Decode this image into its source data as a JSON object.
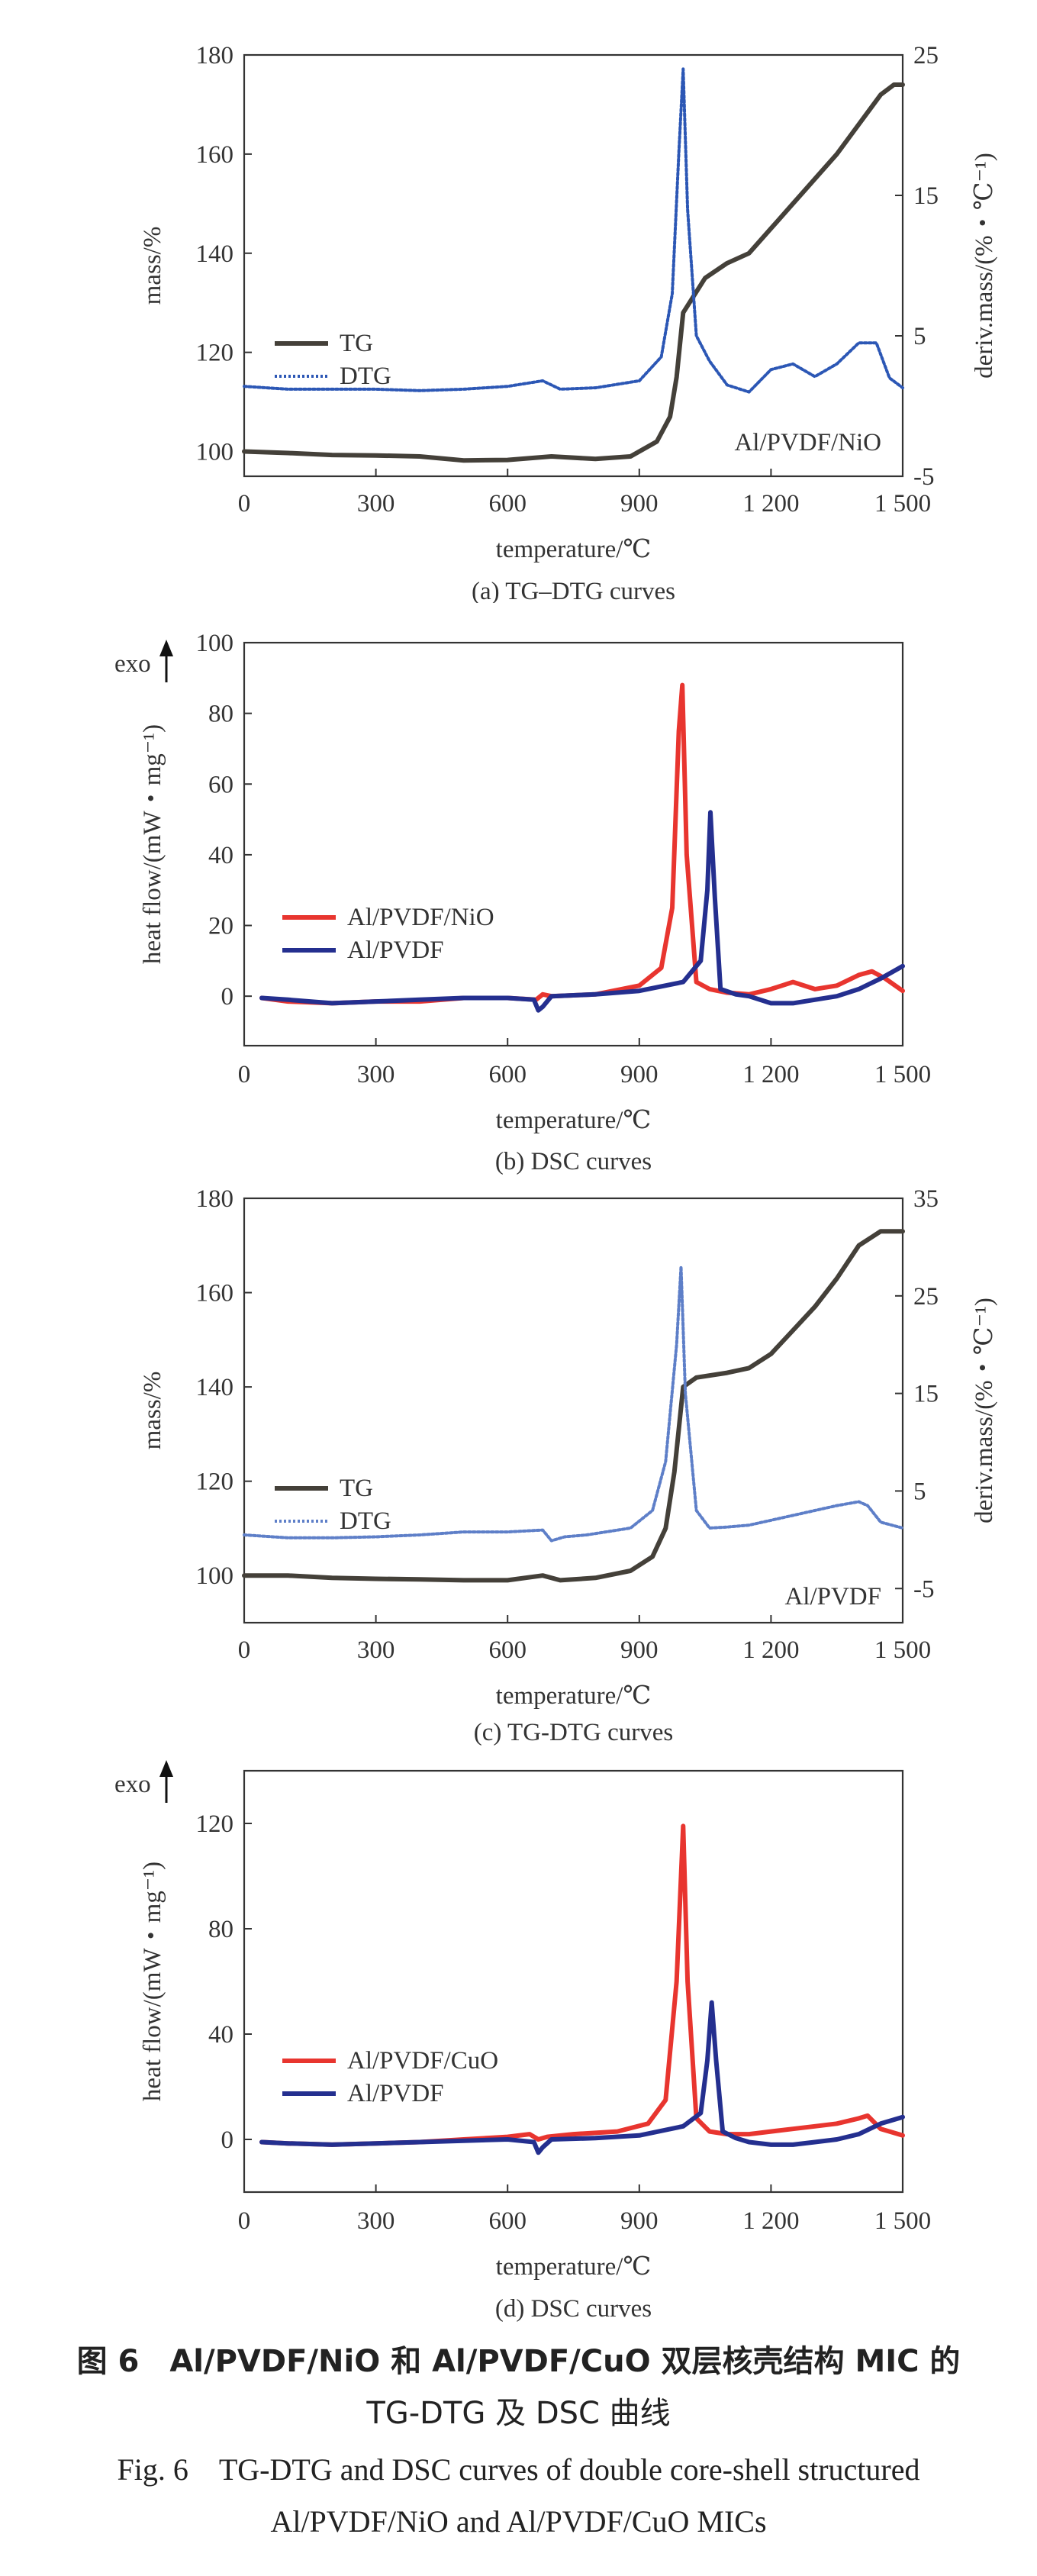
{
  "chart_data": [
    {
      "id": "a",
      "type": "line",
      "subcaption": "(a) TG–DTG curves",
      "xlabel": "temperature/℃",
      "ylabel": "mass/%",
      "y2label": "deriv.mass/(%・℃⁻¹)",
      "xlim": [
        0,
        1500
      ],
      "ylim": [
        95,
        180
      ],
      "y2lim": [
        -5,
        25
      ],
      "xticks": [
        0,
        300,
        600,
        900,
        1200,
        1500
      ],
      "xticklabels": [
        "0",
        "300",
        "600",
        "900",
        "1 200",
        "1 500"
      ],
      "yticks": [
        100,
        120,
        140,
        160,
        180
      ],
      "y2ticks": [
        -5,
        5,
        15,
        25
      ],
      "annotation": "Al/PVDF/NiO",
      "legend_position": "left",
      "series": [
        {
          "name": "TG",
          "axis": "left",
          "color": "#444039",
          "style": "solid",
          "x": [
            0,
            100,
            200,
            300,
            400,
            500,
            600,
            700,
            800,
            880,
            940,
            970,
            985,
            1000,
            1050,
            1100,
            1150,
            1200,
            1250,
            1300,
            1350,
            1400,
            1450,
            1480,
            1500
          ],
          "y": [
            100,
            99.7,
            99.3,
            99.2,
            99,
            98.2,
            98.3,
            99,
            98.5,
            99,
            102,
            107,
            115,
            128,
            135,
            138,
            140,
            145,
            150,
            155,
            160,
            166,
            172,
            174,
            174
          ]
        },
        {
          "name": "DTG",
          "axis": "right",
          "color": "#2c57b5",
          "style": "dotted",
          "x": [
            0,
            100,
            200,
            300,
            400,
            500,
            600,
            680,
            720,
            800,
            900,
            950,
            975,
            990,
            1000,
            1010,
            1030,
            1060,
            1100,
            1150,
            1200,
            1250,
            1300,
            1350,
            1400,
            1440,
            1470,
            1500
          ],
          "y": [
            1.4,
            1.2,
            1.2,
            1.2,
            1.1,
            1.2,
            1.4,
            1.8,
            1.2,
            1.3,
            1.8,
            3.5,
            8,
            18,
            24,
            14,
            5,
            3.2,
            1.5,
            1.0,
            2.6,
            3.0,
            2.1,
            3.0,
            4.5,
            4.5,
            2.0,
            1.3
          ]
        }
      ]
    },
    {
      "id": "b",
      "type": "line",
      "subcaption": "(b) DSC curves",
      "xlabel": "temperature/℃",
      "ylabel": "heat flow/(mW・mg⁻¹)",
      "exo_label": "exo",
      "xlim": [
        0,
        1500
      ],
      "ylim": [
        -14,
        100
      ],
      "xticks": [
        0,
        300,
        600,
        900,
        1200,
        1500
      ],
      "xticklabels": [
        "0",
        "300",
        "600",
        "900",
        "1 200",
        "1 500"
      ],
      "yticks": [
        0,
        20,
        40,
        60,
        80,
        100
      ],
      "legend_position": "left",
      "series": [
        {
          "name": "Al/PVDF/NiO",
          "color": "#e8352f",
          "style": "solid",
          "x": [
            40,
            100,
            200,
            300,
            400,
            500,
            600,
            665,
            680,
            700,
            800,
            900,
            950,
            975,
            990,
            998,
            1008,
            1030,
            1060,
            1100,
            1150,
            1200,
            1250,
            1300,
            1350,
            1400,
            1430,
            1460,
            1500
          ],
          "y": [
            -0.5,
            -1.5,
            -2,
            -1.5,
            -1.5,
            -0.5,
            -0.5,
            -1,
            0.5,
            0,
            0.5,
            3,
            8,
            25,
            75,
            88,
            40,
            4,
            2,
            1,
            0.5,
            2,
            4,
            2,
            3,
            6,
            7,
            5,
            1.5
          ]
        },
        {
          "name": "Al/PVDF",
          "color": "#242f8f",
          "style": "solid",
          "x": [
            40,
            100,
            200,
            300,
            400,
            500,
            600,
            660,
            670,
            680,
            700,
            800,
            900,
            1000,
            1040,
            1055,
            1062,
            1072,
            1085,
            1120,
            1150,
            1200,
            1250,
            1300,
            1350,
            1400,
            1450,
            1500
          ],
          "y": [
            -0.5,
            -1,
            -2,
            -1.5,
            -1,
            -0.5,
            -0.5,
            -1,
            -4,
            -3,
            0,
            0.5,
            1.5,
            4,
            10,
            30,
            52,
            28,
            2,
            0.5,
            0,
            -2,
            -2,
            -1,
            0,
            2,
            5,
            8.5
          ]
        }
      ]
    },
    {
      "id": "c",
      "type": "line",
      "subcaption": "(c) TG-DTG curves",
      "xlabel": "temperature/℃",
      "ylabel": "mass/%",
      "y2label": "deriv.mass/(%・℃⁻¹)",
      "xlim": [
        0,
        1500
      ],
      "ylim": [
        90,
        180
      ],
      "y2lim": [
        -8.5,
        35
      ],
      "xticks": [
        0,
        300,
        600,
        900,
        1200,
        1500
      ],
      "xticklabels": [
        "0",
        "300",
        "600",
        "900",
        "1 200",
        "1 500"
      ],
      "yticks": [
        100,
        120,
        140,
        160,
        180
      ],
      "y2ticks": [
        -5,
        5,
        15,
        25,
        35
      ],
      "annotation": "Al/PVDF",
      "legend_position": "left",
      "series": [
        {
          "name": "TG",
          "axis": "left",
          "color": "#444039",
          "style": "solid",
          "x": [
            0,
            100,
            200,
            300,
            400,
            500,
            600,
            680,
            720,
            800,
            880,
            930,
            960,
            980,
            1000,
            1030,
            1100,
            1150,
            1200,
            1250,
            1300,
            1350,
            1400,
            1450,
            1480,
            1500
          ],
          "y": [
            100,
            100,
            99.5,
            99.3,
            99.2,
            99,
            99,
            100,
            99,
            99.5,
            101,
            104,
            110,
            122,
            140,
            142,
            143,
            144,
            147,
            152,
            157,
            163,
            170,
            173,
            173,
            173
          ]
        },
        {
          "name": "DTG",
          "axis": "right",
          "color": "#5e7fc8",
          "style": "dotted",
          "x": [
            0,
            100,
            200,
            300,
            400,
            500,
            600,
            680,
            700,
            730,
            780,
            880,
            930,
            960,
            985,
            995,
            1005,
            1030,
            1060,
            1100,
            1150,
            1200,
            1250,
            1300,
            1350,
            1400,
            1420,
            1450,
            1500
          ],
          "y": [
            0.5,
            0.2,
            0.2,
            0.3,
            0.5,
            0.8,
            0.8,
            1.0,
            -0.1,
            0.3,
            0.5,
            1.2,
            3,
            8,
            20,
            28,
            15,
            3,
            1.2,
            1.3,
            1.5,
            2.0,
            2.5,
            3.0,
            3.5,
            3.9,
            3.5,
            1.8,
            1.2
          ]
        }
      ]
    },
    {
      "id": "d",
      "type": "line",
      "subcaption": "(d) DSC curves",
      "xlabel": "temperature/℃",
      "ylabel": "heat flow/(mW・mg⁻¹)",
      "exo_label": "exo",
      "xlim": [
        0,
        1500
      ],
      "ylim": [
        -20,
        140
      ],
      "xticks": [
        0,
        300,
        600,
        900,
        1200,
        1500
      ],
      "xticklabels": [
        "0",
        "300",
        "600",
        "900",
        "1 200",
        "1 500"
      ],
      "yticks": [
        0,
        40,
        80,
        120
      ],
      "legend_position": "left",
      "series": [
        {
          "name": "Al/PVDF/CuO",
          "color": "#e8352f",
          "style": "solid",
          "x": [
            40,
            100,
            200,
            300,
            400,
            500,
            600,
            650,
            670,
            690,
            750,
            850,
            920,
            960,
            985,
            1000,
            1010,
            1030,
            1060,
            1100,
            1150,
            1200,
            1250,
            1300,
            1350,
            1400,
            1420,
            1450,
            1500
          ],
          "y": [
            -1,
            -1.5,
            -2,
            -1.5,
            -1,
            0,
            1,
            2,
            0,
            1,
            2,
            3,
            6,
            15,
            60,
            119,
            60,
            8,
            3,
            2,
            2,
            3,
            4,
            5,
            6,
            8,
            9,
            4,
            1.5
          ]
        },
        {
          "name": "Al/PVDF",
          "color": "#242f8f",
          "style": "solid",
          "x": [
            40,
            100,
            200,
            300,
            400,
            500,
            600,
            660,
            670,
            680,
            700,
            800,
            900,
            1000,
            1040,
            1055,
            1065,
            1075,
            1090,
            1120,
            1150,
            1200,
            1250,
            1300,
            1350,
            1400,
            1450,
            1500
          ],
          "y": [
            -1,
            -1.5,
            -2,
            -1.5,
            -1,
            -0.5,
            0,
            -1,
            -5,
            -3,
            0,
            0.5,
            1.5,
            5,
            10,
            30,
            52,
            30,
            3,
            0.5,
            -1,
            -2,
            -2,
            -1,
            0,
            2,
            6,
            8.5
          ]
        }
      ]
    }
  ],
  "caption": {
    "zh_line1": "图 6　Al/PVDF/NiO 和 Al/PVDF/CuO 双层核壳结构 MIC 的",
    "zh_line2": "TG-DTG 及 DSC 曲线",
    "en_line1": "Fig. 6　TG-DTG and DSC curves of double core-shell structured",
    "en_line2": "Al/PVDF/NiO and Al/PVDF/CuO MICs"
  }
}
